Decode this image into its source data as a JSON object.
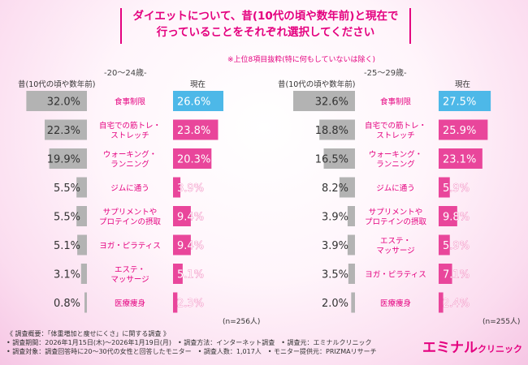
{
  "title_lines": [
    "ダイエットについて、昔(10代の頃や数年前)と現在で",
    "行っていることをそれぞれ選択してください"
  ],
  "note": "※上位8項目抜粋(特に何もしていないは除く)",
  "panels": [
    {
      "title": "-20～24歳-",
      "n": "(n=256人)"
    },
    {
      "title": "-25～29歳-",
      "n": "(n=255人)"
    }
  ],
  "headers": {
    "past": "昔(10代の頃や数年前)",
    "present": "現在"
  },
  "colors": {
    "past": "#b3b3b3",
    "present_top": "#4db8e8",
    "present": "#e9469b",
    "accent": "#e4007f"
  },
  "chart_data": [
    {
      "type": "bar",
      "title": "-20～24歳-",
      "categories": [
        "食事制限",
        "自宅での筋トレ・ストレッチ",
        "ウォーキング・ランニング",
        "ジムに通う",
        "サプリメントやプロテインの摂取",
        "ヨガ・ピラティス",
        "エステ・マッサージ",
        "医療痩身"
      ],
      "category_lines": [
        [
          "食事制限"
        ],
        [
          "自宅での筋トレ・",
          "ストレッチ"
        ],
        [
          "ウォーキング・",
          "ランニング"
        ],
        [
          "ジムに通う"
        ],
        [
          "サプリメントや",
          "プロテインの摂取"
        ],
        [
          "ヨガ・ピラティス"
        ],
        [
          "エステ・",
          "マッサージ"
        ],
        [
          "医療痩身"
        ]
      ],
      "series": [
        {
          "name": "昔(10代の頃や数年前)",
          "values": [
            32.0,
            22.3,
            19.9,
            5.5,
            5.5,
            5.1,
            3.1,
            0.8
          ]
        },
        {
          "name": "現在",
          "values": [
            26.6,
            23.8,
            20.3,
            3.9,
            9.4,
            9.4,
            5.1,
            2.3
          ]
        }
      ],
      "unit": "%",
      "n": "(n=256人)"
    },
    {
      "type": "bar",
      "title": "-25～29歳-",
      "categories": [
        "食事制限",
        "自宅での筋トレ・ストレッチ",
        "ウォーキング・ランニング",
        "ジムに通う",
        "サプリメントやプロテインの摂取",
        "エステ・マッサージ",
        "ヨガ・ピラティス",
        "医療痩身"
      ],
      "category_lines": [
        [
          "食事制限"
        ],
        [
          "自宅での筋トレ・",
          "ストレッチ"
        ],
        [
          "ウォーキング・",
          "ランニング"
        ],
        [
          "ジムに通う"
        ],
        [
          "サプリメントや",
          "プロテインの摂取"
        ],
        [
          "エステ・",
          "マッサージ"
        ],
        [
          "ヨガ・ピラティス"
        ],
        [
          "医療痩身"
        ]
      ],
      "series": [
        {
          "name": "昔(10代の頃や数年前)",
          "values": [
            32.6,
            18.8,
            16.5,
            8.2,
            3.9,
            3.9,
            3.5,
            2.0
          ]
        },
        {
          "name": "現在",
          "values": [
            27.5,
            25.9,
            23.1,
            5.9,
            9.8,
            5.9,
            7.1,
            2.4
          ]
        }
      ],
      "unit": "%",
      "n": "(n=255人)"
    }
  ],
  "footer_lines": [
    "《 調査概要：「体重増加と痩せにくさ」に関する調査 》",
    "• 調査期間：2026年1月15日(木)～2026年1月19日(月)　• 調査方法：インターネット調査　• 調査元：エミナルクリニック",
    "• 調査対象：調査回答時に20～30代の女性と回答したモニター　• 調査人数：1,017人　• モニター提供元：PRIZMAリサーチ"
  ],
  "brand": {
    "name": "エミナル",
    "sub": "クリニック"
  }
}
